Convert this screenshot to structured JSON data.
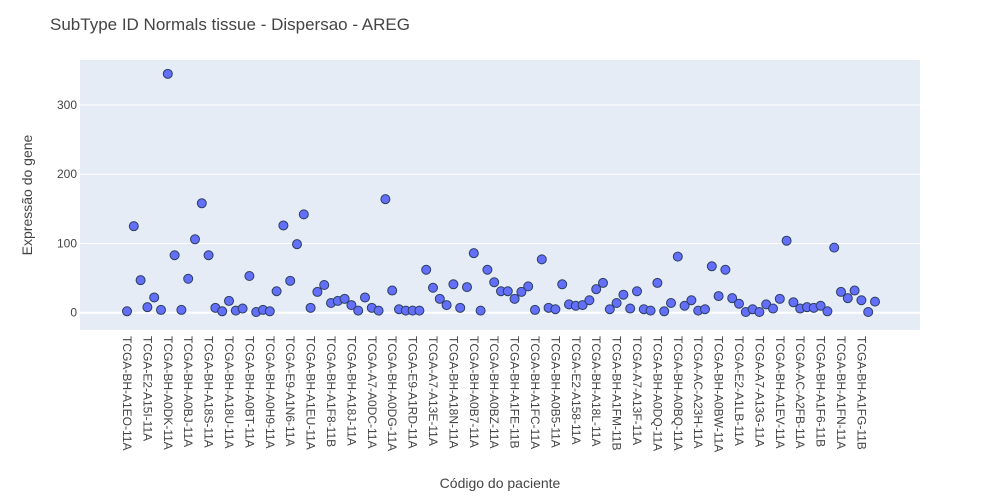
{
  "chart_data": {
    "type": "scatter",
    "title": "SubType ID Normals tissue - Dispersao - AREG",
    "xlabel": "Código do paciente",
    "ylabel": "Expressão do gene",
    "ylim": [
      -25,
      365
    ],
    "yticks": [
      0,
      100,
      200,
      300
    ],
    "grid": true,
    "marker_color": "#636efa",
    "marker_edge_color": "#2a3f5f",
    "plot_background": "#e5ecf6",
    "x_tick_labels": [
      "TCGA-BH-A1EO-11A",
      "TCGA-E2-A15I-11A",
      "TCGA-BH-A0DK-11A",
      "TCGA-BH-A0BJ-11A",
      "TCGA-BH-A18S-11A",
      "TCGA-BH-A18U-11A",
      "TCGA-BH-A0BT-11A",
      "TCGA-BH-A0H9-11A",
      "TCGA-E9-A1N6-11A",
      "TCGA-BH-A1EU-11A",
      "TCGA-BH-A1F8-11B",
      "TCGA-BH-A18J-11A",
      "TCGA-A7-A0DC-11A",
      "TCGA-BH-A0DG-11A",
      "TCGA-E9-A1RD-11A",
      "TCGA-A7-A13E-11A",
      "TCGA-BH-A18N-11A",
      "TCGA-BH-A0B7-11A",
      "TCGA-BH-A0BZ-11A",
      "TCGA-BH-A1FE-11B",
      "TCGA-BH-A1FC-11A",
      "TCGA-BH-A0B5-11A",
      "TCGA-E2-A158-11A",
      "TCGA-BH-A18L-11A",
      "TCGA-BH-A1FM-11B",
      "TCGA-A7-A13F-11A",
      "TCGA-BH-A0DQ-11A",
      "TCGA-BH-A0BQ-11A",
      "TCGA-AC-A23H-11A",
      "TCGA-BH-A0BW-11A",
      "TCGA-E2-A1LB-11A",
      "TCGA-A7-A13G-11A",
      "TCGA-BH-A1EV-11A",
      "TCGA-AC-A2FB-11A",
      "TCGA-BH-A1F6-11B",
      "TCGA-BH-A1FN-11A",
      "TCGA-BH-A1FG-11B"
    ],
    "values": [
      2,
      125,
      47,
      8,
      22,
      4,
      345,
      83,
      4,
      49,
      106,
      158,
      83,
      7,
      2,
      17,
      3,
      6,
      53,
      1,
      4,
      2,
      31,
      126,
      46,
      99,
      142,
      7,
      30,
      40,
      14,
      17,
      20,
      11,
      3,
      22,
      7,
      3,
      164,
      32,
      5,
      3,
      3,
      3,
      62,
      36,
      20,
      11,
      41,
      7,
      37,
      86,
      3,
      62,
      44,
      31,
      31,
      20,
      30,
      38,
      4,
      77,
      7,
      5,
      41,
      12,
      10,
      11,
      18,
      34,
      43,
      5,
      14,
      26,
      6,
      31,
      5,
      3,
      43,
      2,
      14,
      81,
      10,
      18,
      3,
      5,
      67,
      24,
      62,
      21,
      13,
      1,
      5,
      1,
      12,
      6,
      20,
      104,
      15,
      6,
      8,
      7,
      10,
      2,
      94,
      30,
      21,
      32,
      18,
      1,
      16
    ]
  }
}
